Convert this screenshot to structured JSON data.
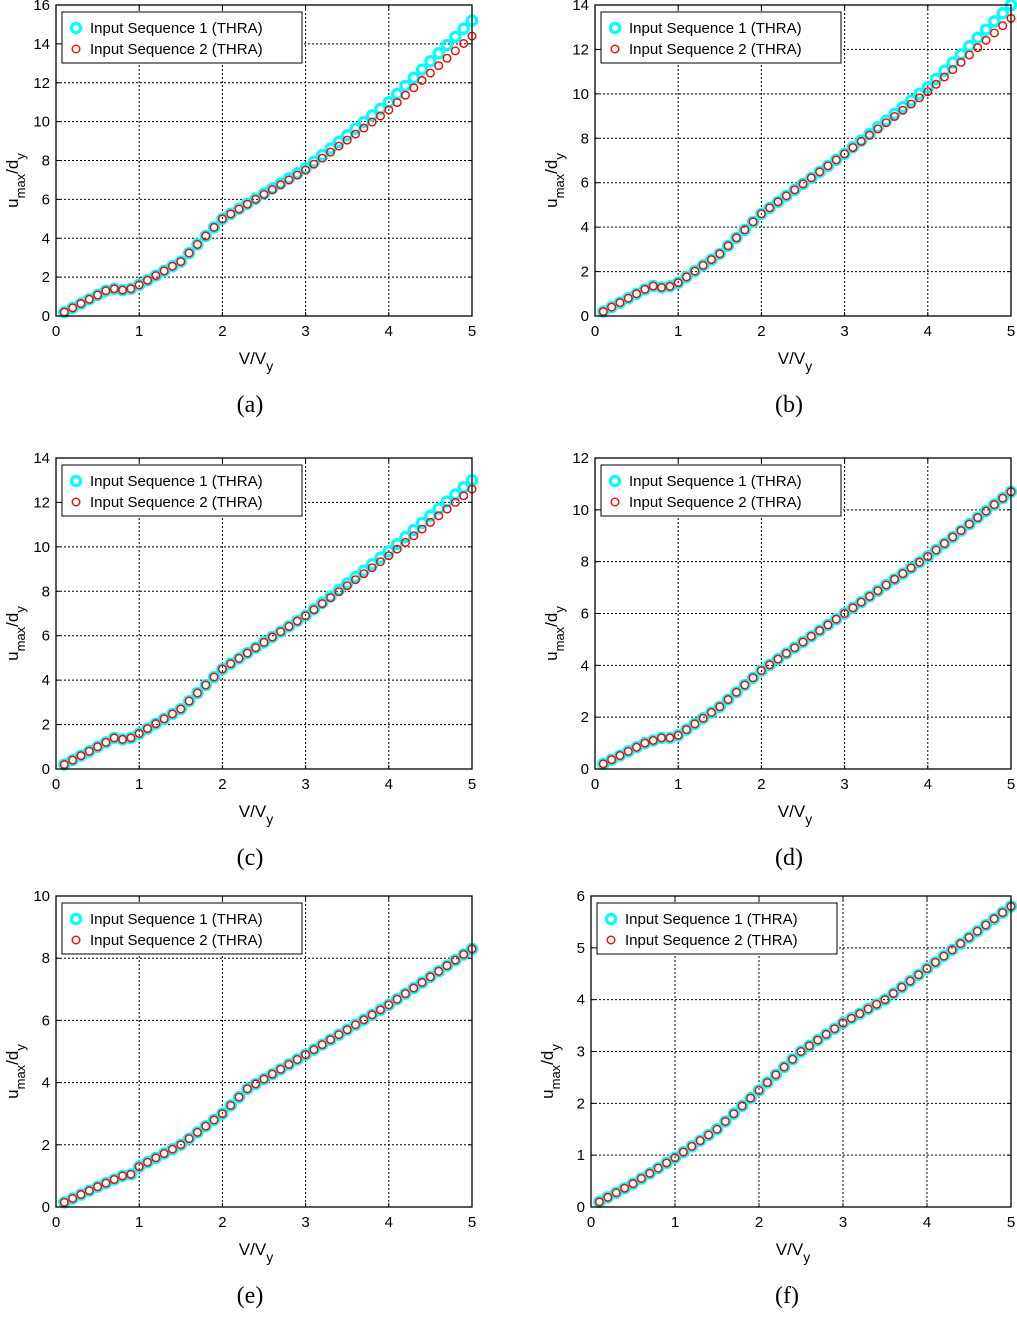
{
  "figure": {
    "legend_labels": [
      "Input Sequence 1 (THRA)",
      "Input Sequence 2 (THRA)"
    ],
    "colors": {
      "series1": "#00ffff",
      "series2": "#ff0000",
      "axis": "#000000",
      "grid": "#000000"
    }
  },
  "chart_data": [
    {
      "panel": "(a)",
      "type": "scatter",
      "xlabel": "V/V_y",
      "ylabel": "u_max/d_y",
      "xlim": [
        0,
        5
      ],
      "ylim": [
        0,
        16
      ],
      "xticks": [
        0,
        1,
        2,
        3,
        4,
        5
      ],
      "yticks": [
        0,
        2,
        4,
        6,
        8,
        10,
        12,
        14,
        16
      ],
      "grid": true,
      "legend": "top-left",
      "series": [
        {
          "name": "Input Sequence 1 (THRA)",
          "knots": [
            [
              0.1,
              0.2
            ],
            [
              0.6,
              1.3
            ],
            [
              0.7,
              1.4
            ],
            [
              0.85,
              1.3
            ],
            [
              1.0,
              1.6
            ],
            [
              1.5,
              2.8
            ],
            [
              2.0,
              5.0
            ],
            [
              3.0,
              7.6
            ],
            [
              4.0,
              11.0
            ],
            [
              5.0,
              15.2
            ]
          ]
        },
        {
          "name": "Input Sequence 2 (THRA)",
          "knots": [
            [
              0.1,
              0.2
            ],
            [
              0.6,
              1.3
            ],
            [
              0.7,
              1.4
            ],
            [
              0.85,
              1.3
            ],
            [
              1.0,
              1.6
            ],
            [
              1.5,
              2.8
            ],
            [
              2.0,
              5.0
            ],
            [
              3.0,
              7.5
            ],
            [
              4.0,
              10.6
            ],
            [
              5.0,
              14.4
            ]
          ]
        }
      ]
    },
    {
      "panel": "(b)",
      "type": "scatter",
      "xlabel": "V/V_y",
      "ylabel": "u_max/d_y",
      "xlim": [
        0,
        5
      ],
      "ylim": [
        0,
        14
      ],
      "xticks": [
        0,
        1,
        2,
        3,
        4,
        5
      ],
      "yticks": [
        0,
        2,
        4,
        6,
        8,
        10,
        12,
        14
      ],
      "grid": true,
      "legend": "top-left",
      "series": [
        {
          "name": "Input Sequence 1 (THRA)",
          "knots": [
            [
              0.1,
              0.2
            ],
            [
              0.6,
              1.2
            ],
            [
              0.7,
              1.35
            ],
            [
              0.85,
              1.25
            ],
            [
              1.0,
              1.5
            ],
            [
              1.5,
              2.8
            ],
            [
              2.0,
              4.6
            ],
            [
              3.0,
              7.3
            ],
            [
              4.0,
              10.3
            ],
            [
              5.0,
              14.0
            ]
          ]
        },
        {
          "name": "Input Sequence 2 (THRA)",
          "knots": [
            [
              0.1,
              0.2
            ],
            [
              0.6,
              1.2
            ],
            [
              0.7,
              1.35
            ],
            [
              0.85,
              1.25
            ],
            [
              1.0,
              1.5
            ],
            [
              1.5,
              2.8
            ],
            [
              2.0,
              4.6
            ],
            [
              3.0,
              7.3
            ],
            [
              4.0,
              10.1
            ],
            [
              5.0,
              13.4
            ]
          ]
        }
      ]
    },
    {
      "panel": "(c)",
      "type": "scatter",
      "xlabel": "V/V_y",
      "ylabel": "u_max/d_y",
      "xlim": [
        0,
        5
      ],
      "ylim": [
        0,
        14
      ],
      "xticks": [
        0,
        1,
        2,
        3,
        4,
        5
      ],
      "yticks": [
        0,
        2,
        4,
        6,
        8,
        10,
        12,
        14
      ],
      "grid": true,
      "legend": "top-left",
      "series": [
        {
          "name": "Input Sequence 1 (THRA)",
          "knots": [
            [
              0.1,
              0.2
            ],
            [
              0.6,
              1.2
            ],
            [
              0.7,
              1.4
            ],
            [
              0.85,
              1.3
            ],
            [
              1.0,
              1.6
            ],
            [
              1.5,
              2.7
            ],
            [
              2.0,
              4.5
            ],
            [
              3.0,
              6.9
            ],
            [
              4.0,
              9.8
            ],
            [
              5.0,
              13.0
            ]
          ]
        },
        {
          "name": "Input Sequence 2 (THRA)",
          "knots": [
            [
              0.1,
              0.2
            ],
            [
              0.6,
              1.2
            ],
            [
              0.7,
              1.4
            ],
            [
              0.85,
              1.3
            ],
            [
              1.0,
              1.6
            ],
            [
              1.5,
              2.7
            ],
            [
              2.0,
              4.5
            ],
            [
              3.0,
              6.9
            ],
            [
              4.0,
              9.6
            ],
            [
              5.0,
              12.6
            ]
          ]
        }
      ]
    },
    {
      "panel": "(d)",
      "type": "scatter",
      "xlabel": "V/V_y",
      "ylabel": "u_max/d_y",
      "xlim": [
        0,
        5
      ],
      "ylim": [
        0,
        12
      ],
      "xticks": [
        0,
        1,
        2,
        3,
        4,
        5
      ],
      "yticks": [
        0,
        2,
        4,
        6,
        8,
        10,
        12
      ],
      "grid": true,
      "legend": "top-left",
      "series": [
        {
          "name": "Input Sequence 1 (THRA)",
          "knots": [
            [
              0.1,
              0.2
            ],
            [
              0.6,
              1.0
            ],
            [
              0.8,
              1.2
            ],
            [
              0.95,
              1.2
            ],
            [
              1.0,
              1.3
            ],
            [
              1.5,
              2.4
            ],
            [
              2.0,
              3.8
            ],
            [
              3.0,
              6.0
            ],
            [
              4.0,
              8.2
            ],
            [
              5.0,
              10.7
            ]
          ]
        },
        {
          "name": "Input Sequence 2 (THRA)",
          "knots": [
            [
              0.1,
              0.2
            ],
            [
              0.6,
              1.0
            ],
            [
              0.8,
              1.2
            ],
            [
              0.95,
              1.2
            ],
            [
              1.0,
              1.3
            ],
            [
              1.5,
              2.4
            ],
            [
              2.0,
              3.8
            ],
            [
              3.0,
              6.0
            ],
            [
              4.0,
              8.2
            ],
            [
              5.0,
              10.7
            ]
          ]
        }
      ]
    },
    {
      "panel": "(e)",
      "type": "scatter",
      "xlabel": "V/V_y",
      "ylabel": "u_max/d_y",
      "xlim": [
        0,
        5
      ],
      "ylim": [
        0,
        10
      ],
      "xticks": [
        0,
        1,
        2,
        3,
        4,
        5
      ],
      "yticks": [
        0,
        2,
        4,
        6,
        8,
        10
      ],
      "grid": true,
      "legend": "top-left",
      "series": [
        {
          "name": "Input Sequence 1 (THRA)",
          "knots": [
            [
              0.1,
              0.15
            ],
            [
              0.5,
              0.65
            ],
            [
              0.8,
              1.0
            ],
            [
              0.9,
              1.05
            ],
            [
              1.0,
              1.3
            ],
            [
              1.5,
              2.0
            ],
            [
              2.0,
              3.0
            ],
            [
              2.3,
              3.8
            ],
            [
              3.0,
              4.9
            ],
            [
              4.0,
              6.5
            ],
            [
              5.0,
              8.3
            ]
          ]
        },
        {
          "name": "Input Sequence 2 (THRA)",
          "knots": [
            [
              0.1,
              0.15
            ],
            [
              0.5,
              0.65
            ],
            [
              0.8,
              1.0
            ],
            [
              0.9,
              1.05
            ],
            [
              1.0,
              1.3
            ],
            [
              1.5,
              2.0
            ],
            [
              2.0,
              3.0
            ],
            [
              2.3,
              3.8
            ],
            [
              3.0,
              4.9
            ],
            [
              4.0,
              6.5
            ],
            [
              5.0,
              8.3
            ]
          ]
        }
      ]
    },
    {
      "panel": "(f)",
      "type": "scatter",
      "xlabel": "V/V_y",
      "ylabel": "u_max/d_y",
      "xlim": [
        0,
        5
      ],
      "ylim": [
        0,
        6
      ],
      "xticks": [
        0,
        1,
        2,
        3,
        4,
        5
      ],
      "yticks": [
        0,
        1,
        2,
        3,
        4,
        5,
        6
      ],
      "grid": true,
      "legend": "top-left",
      "series": [
        {
          "name": "Input Sequence 1 (THRA)",
          "knots": [
            [
              0.1,
              0.1
            ],
            [
              0.5,
              0.45
            ],
            [
              1.0,
              0.95
            ],
            [
              1.5,
              1.5
            ],
            [
              2.0,
              2.25
            ],
            [
              2.5,
              3.0
            ],
            [
              3.0,
              3.55
            ],
            [
              3.5,
              4.0
            ],
            [
              4.0,
              4.6
            ],
            [
              5.0,
              5.8
            ]
          ]
        },
        {
          "name": "Input Sequence 2 (THRA)",
          "knots": [
            [
              0.1,
              0.1
            ],
            [
              0.5,
              0.45
            ],
            [
              1.0,
              0.95
            ],
            [
              1.5,
              1.5
            ],
            [
              2.0,
              2.25
            ],
            [
              2.5,
              3.0
            ],
            [
              3.0,
              3.55
            ],
            [
              3.5,
              4.0
            ],
            [
              4.0,
              4.6
            ],
            [
              5.0,
              5.8
            ]
          ]
        }
      ]
    }
  ]
}
